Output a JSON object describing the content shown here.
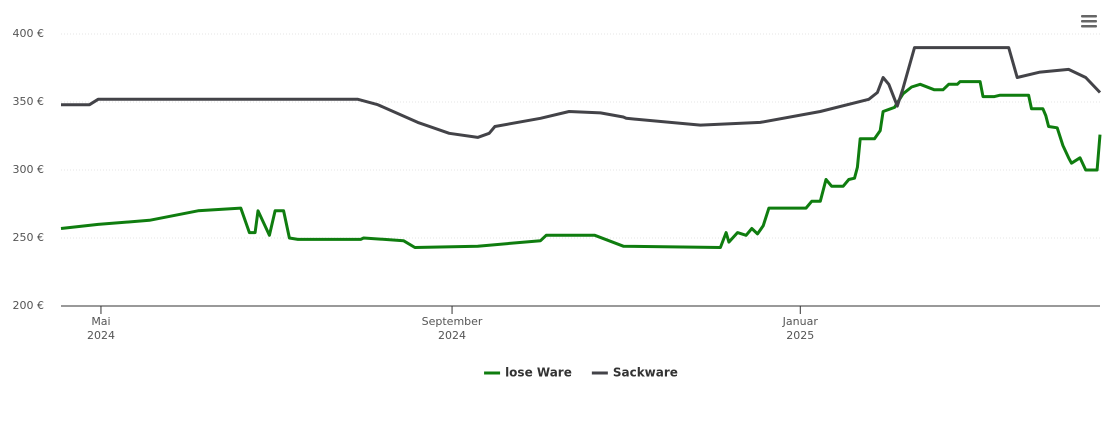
{
  "chart_data": {
    "type": "line",
    "xlim": [
      "2024-04-17",
      "2025-04-16"
    ],
    "xticks": [
      {
        "value": "2024-05-01",
        "label": "Mai 2024"
      },
      {
        "value": "2024-09-01",
        "label": "September 2024"
      },
      {
        "value": "2025-01-01",
        "label": "Januar 2025"
      }
    ],
    "ylim": [
      200,
      400
    ],
    "yticks": [
      {
        "value": 200,
        "label": "200 €"
      },
      {
        "value": 250,
        "label": "250 €"
      },
      {
        "value": 300,
        "label": "300 €"
      },
      {
        "value": 350,
        "label": "350 €"
      },
      {
        "value": 400,
        "label": "400 €"
      }
    ],
    "grid": true,
    "legend": "bottom",
    "series": [
      {
        "name": "lose Ware",
        "color": "#0f7d0f",
        "x": [
          "2024-04-17",
          "2024-04-30",
          "2024-05-18",
          "2024-06-04",
          "2024-06-19",
          "2024-06-22",
          "2024-06-24",
          "2024-06-25",
          "2024-06-29",
          "2024-07-01",
          "2024-07-04",
          "2024-07-06",
          "2024-07-09",
          "2024-07-31",
          "2024-08-01",
          "2024-08-15",
          "2024-08-19",
          "2024-09-10",
          "2024-10-02",
          "2024-10-04",
          "2024-10-21",
          "2024-10-31",
          "2024-12-04",
          "2024-12-06",
          "2024-12-07",
          "2024-12-10",
          "2024-12-13",
          "2024-12-15",
          "2024-12-17",
          "2024-12-19",
          "2024-12-21",
          "2025-01-03",
          "2025-01-05",
          "2025-01-08",
          "2025-01-10",
          "2025-01-12",
          "2025-01-16",
          "2025-01-18",
          "2025-01-20",
          "2025-01-21",
          "2025-01-22",
          "2025-01-27",
          "2025-01-29",
          "2025-01-30",
          "2025-02-03",
          "2025-02-06",
          "2025-02-09",
          "2025-02-12",
          "2025-02-17",
          "2025-02-20",
          "2025-02-22",
          "2025-02-25",
          "2025-02-26",
          "2025-03-05",
          "2025-03-06",
          "2025-03-10",
          "2025-03-12",
          "2025-03-22",
          "2025-03-23",
          "2025-03-27",
          "2025-03-28",
          "2025-03-29",
          "2025-04-01",
          "2025-04-03",
          "2025-04-05",
          "2025-04-06",
          "2025-04-09",
          "2025-04-11",
          "2025-04-15",
          "2025-04-16"
        ],
        "values": [
          257,
          260,
          263,
          270,
          272,
          254,
          254,
          270,
          252,
          270,
          270,
          250,
          249,
          249,
          250,
          248,
          243,
          244,
          248,
          252,
          252,
          244,
          243,
          254,
          247,
          254,
          252,
          257,
          253,
          259,
          272,
          272,
          277,
          277,
          293,
          288,
          288,
          293,
          294,
          302,
          323,
          323,
          329,
          343,
          346,
          356,
          361,
          363,
          359,
          359,
          363,
          363,
          365,
          365,
          354,
          354,
          355,
          355,
          345,
          345,
          340,
          332,
          331,
          318,
          309,
          305,
          309,
          300,
          300,
          326
        ]
      },
      {
        "name": "Sackware",
        "color": "#434348",
        "x": [
          "2024-04-17",
          "2024-04-27",
          "2024-04-30",
          "2024-06-04",
          "2024-07-30",
          "2024-08-06",
          "2024-08-20",
          "2024-08-31",
          "2024-09-10",
          "2024-09-14",
          "2024-09-16",
          "2024-10-02",
          "2024-10-12",
          "2024-10-23",
          "2024-10-31",
          "2024-11-01",
          "2024-11-27",
          "2024-12-18",
          "2025-01-08",
          "2025-01-25",
          "2025-01-28",
          "2025-01-30",
          "2025-02-01",
          "2025-02-04",
          "2025-02-06",
          "2025-02-10",
          "2025-03-15",
          "2025-03-18",
          "2025-03-26",
          "2025-04-05",
          "2025-04-11",
          "2025-04-16"
        ],
        "values": [
          348,
          348,
          352,
          352,
          352,
          348,
          335,
          327,
          324,
          327,
          332,
          338,
          343,
          342,
          339,
          338,
          333,
          335,
          343,
          352,
          357,
          368,
          363,
          347,
          360,
          390,
          390,
          368,
          372,
          374,
          368,
          357
        ]
      }
    ]
  }
}
